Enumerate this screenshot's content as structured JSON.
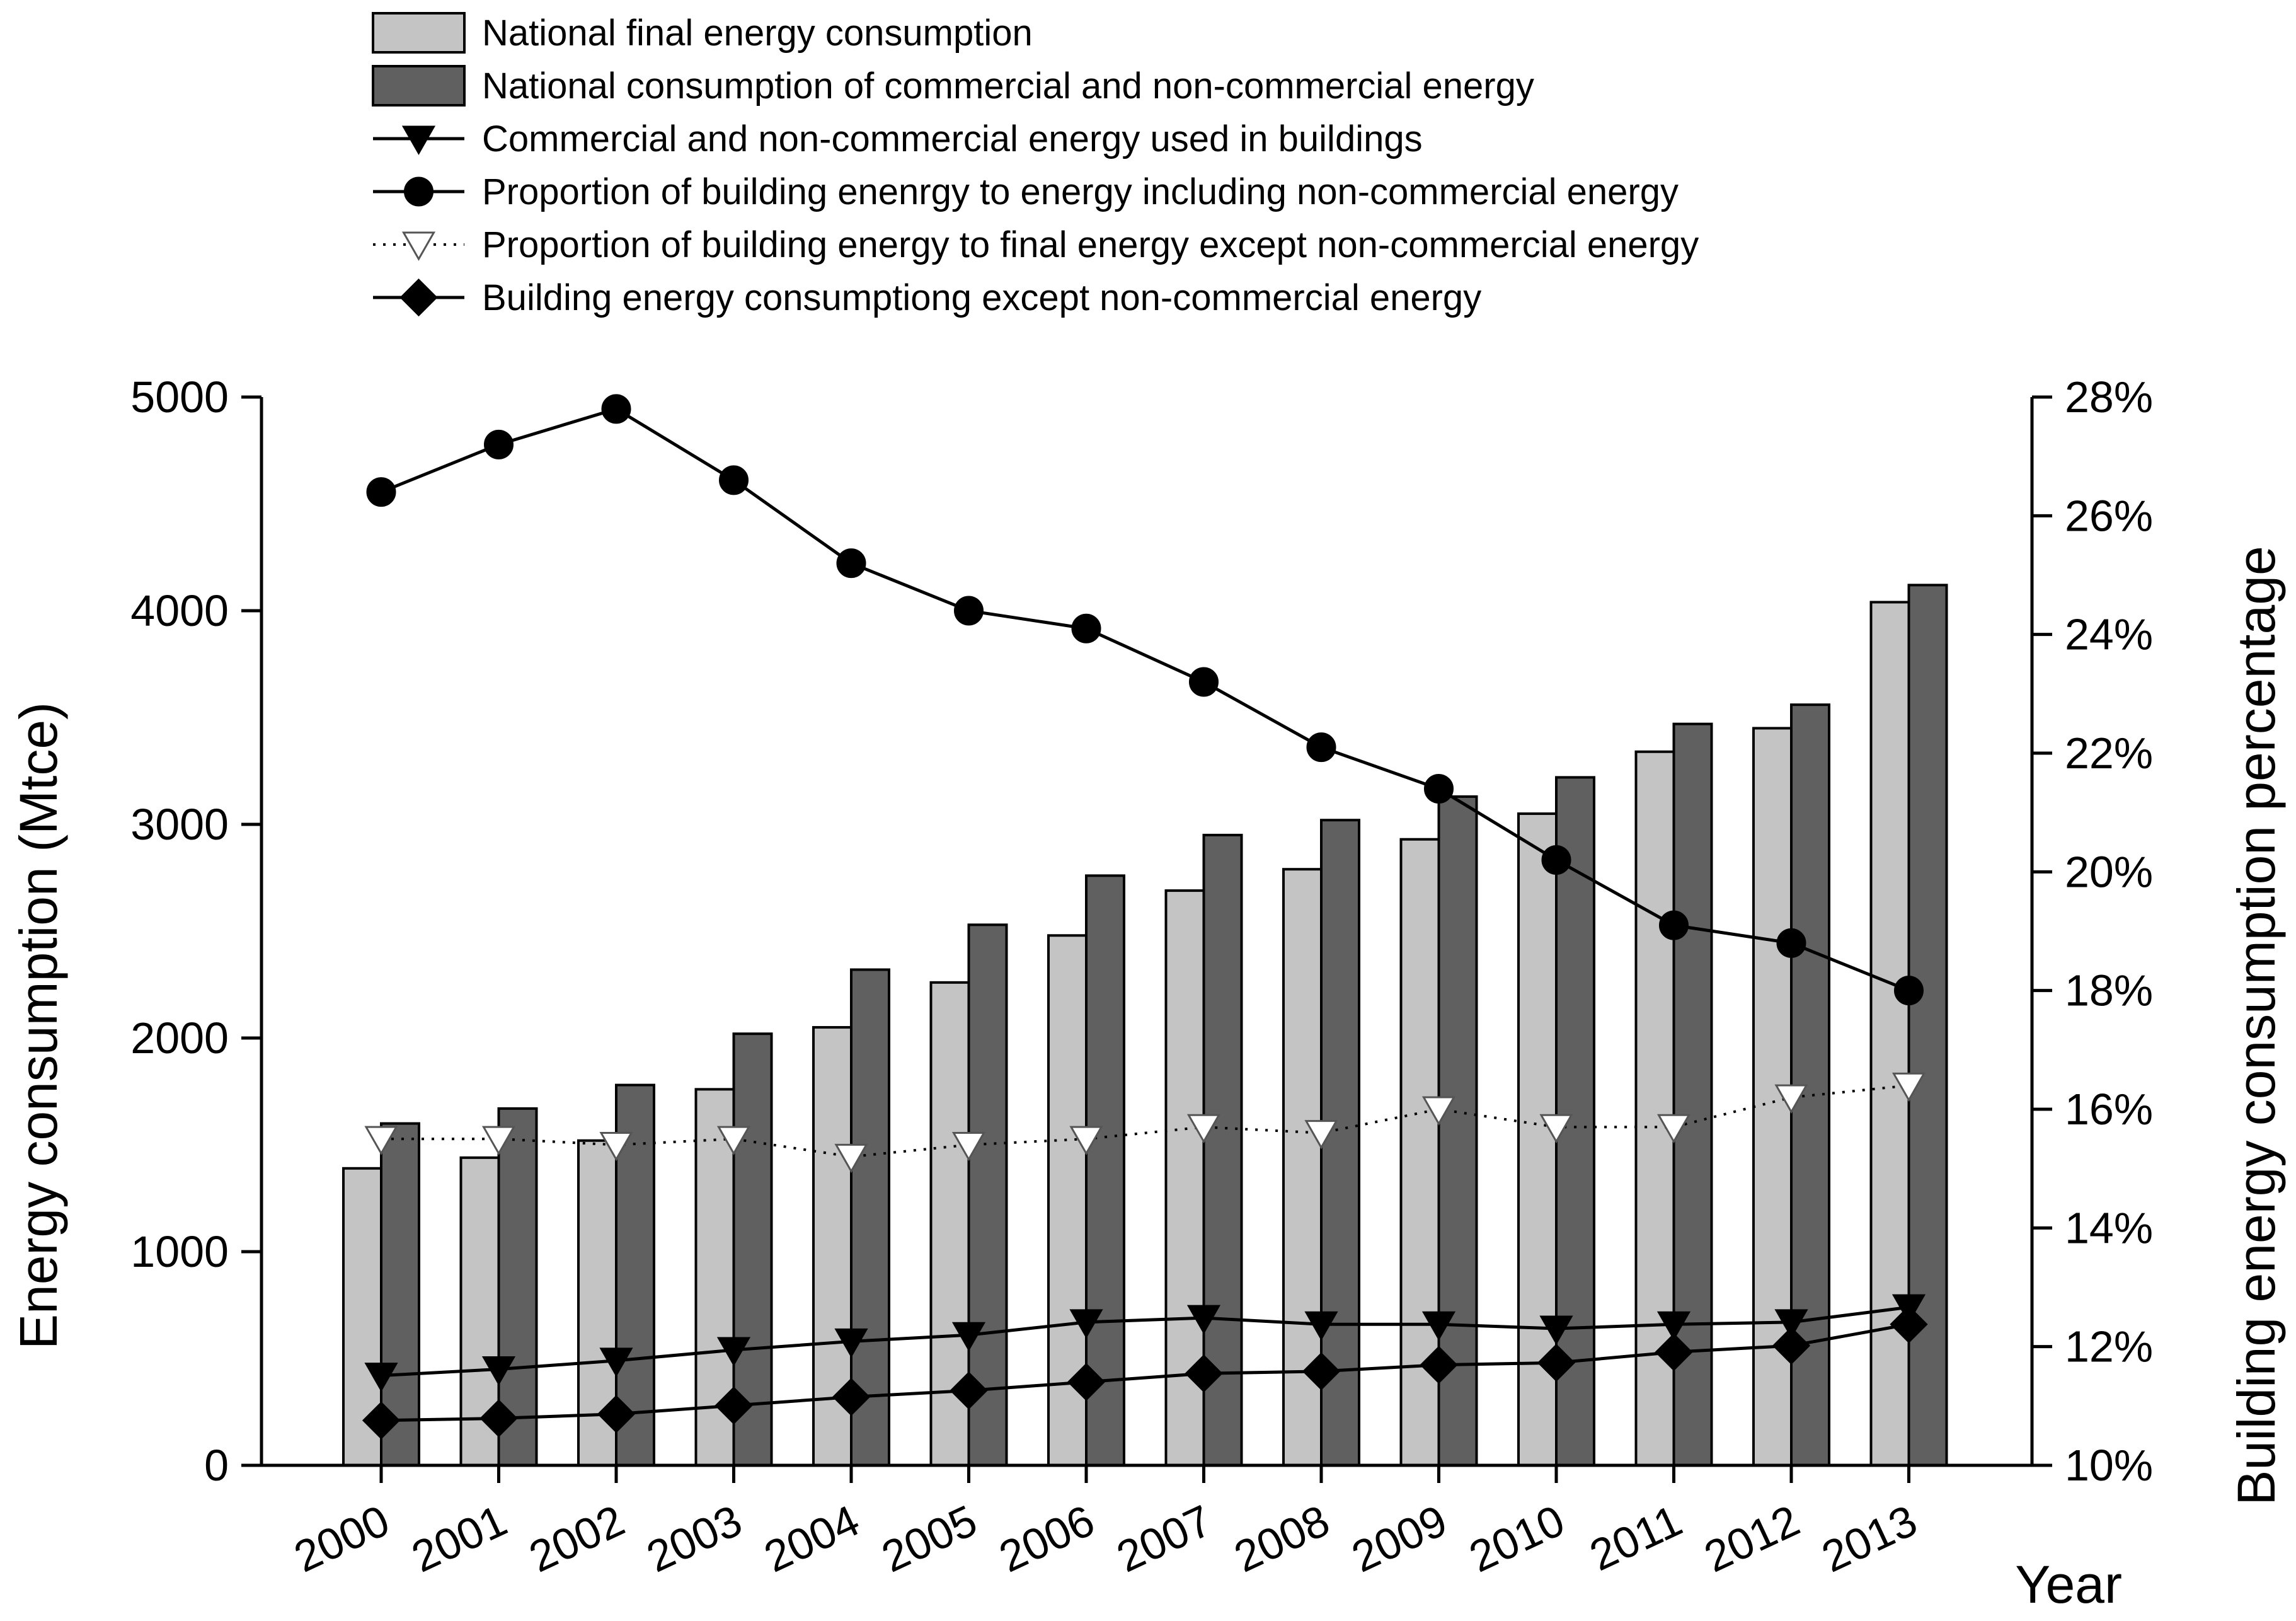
{
  "chart_data": {
    "type": "bar",
    "title": "",
    "xlabel": "Year",
    "ylabel": "Energy consumption (Mtce)",
    "ylabel_right": "Building energy consumption percentage",
    "categories": [
      "2000",
      "2001",
      "2002",
      "2003",
      "2004",
      "2005",
      "2006",
      "2007",
      "2008",
      "2009",
      "2010",
      "2011",
      "2012",
      "2013"
    ],
    "ylim": [
      0,
      5000
    ],
    "yticks": [
      "0",
      "1000",
      "2000",
      "3000",
      "4000",
      "5000"
    ],
    "ylim_right": [
      10,
      28
    ],
    "yticks_right": [
      "10%",
      "12%",
      "14%",
      "16%",
      "18%",
      "20%",
      "22%",
      "24%",
      "26%",
      "28%"
    ],
    "legend_position": "top",
    "series": [
      {
        "name": "National final energy consumption",
        "kind": "bar",
        "axis": "left",
        "color": "#c4c4c4",
        "values": [
          1390,
          1440,
          1520,
          1760,
          2050,
          2260,
          2480,
          2690,
          2790,
          2930,
          3050,
          3340,
          3450,
          4040
        ]
      },
      {
        "name": "National consumption of commercial and non-commercial energy",
        "kind": "bar",
        "axis": "left",
        "color": "#606060",
        "values": [
          1600,
          1670,
          1780,
          2020,
          2320,
          2530,
          2760,
          2950,
          3020,
          3130,
          3220,
          3470,
          3560,
          4120
        ]
      },
      {
        "name": "Commercial and non-commercial energy used in buildings",
        "kind": "line",
        "axis": "left",
        "marker": "triangle-down-filled",
        "line": "solid",
        "values": [
          420,
          450,
          490,
          540,
          580,
          610,
          670,
          690,
          660,
          660,
          640,
          660,
          670,
          740
        ]
      },
      {
        "name": "Proportion of building enenrgy to energy including non-commercial energy",
        "kind": "line",
        "axis": "right",
        "marker": "circle-filled",
        "line": "solid",
        "values": [
          26.4,
          27.2,
          27.8,
          26.6,
          25.2,
          24.4,
          24.1,
          23.2,
          22.1,
          21.4,
          20.2,
          19.1,
          18.8,
          18.0
        ]
      },
      {
        "name": "Proportion of building energy to final energy except non-commercial energy",
        "kind": "line",
        "axis": "right",
        "marker": "triangle-down-open",
        "line": "dotted",
        "values": [
          15.5,
          15.5,
          15.4,
          15.5,
          15.2,
          15.4,
          15.5,
          15.7,
          15.6,
          16.0,
          15.7,
          15.7,
          16.2,
          16.4
        ]
      },
      {
        "name": "Building energy consumptiong except non-commercial energy",
        "kind": "line",
        "axis": "left",
        "marker": "diamond-filled",
        "line": "solid",
        "values": [
          210,
          220,
          240,
          280,
          320,
          350,
          390,
          430,
          440,
          470,
          480,
          530,
          560,
          660
        ]
      }
    ]
  }
}
